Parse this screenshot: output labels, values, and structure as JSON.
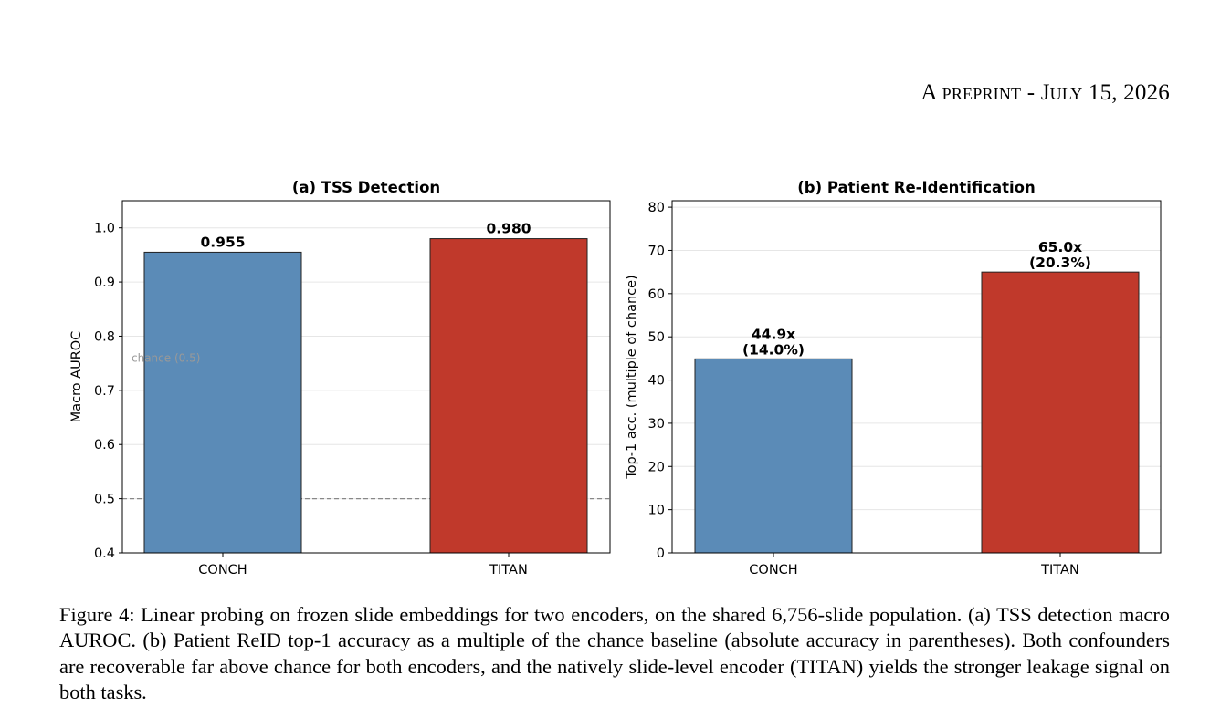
{
  "header": {
    "running_head_a": "A",
    "running_head_preprint": "preprint",
    "running_head_sep": " - ",
    "running_head_j": "J",
    "running_head_uly": "uly",
    "running_head_date": " 15, 2026"
  },
  "colors": {
    "conch": "#5b8bb7",
    "titan": "#c0392b",
    "grid": "#e6e6e6",
    "chance_line": "#888888"
  },
  "chart_data": [
    {
      "type": "bar",
      "title": "(a) TSS Detection",
      "xlabel": "",
      "ylabel": "Macro AUROC",
      "categories": [
        "CONCH",
        "TITAN"
      ],
      "values": [
        0.955,
        0.98
      ],
      "value_labels": [
        "0.955",
        "0.980"
      ],
      "ylim": [
        0.4,
        1.05
      ],
      "yticks": [
        0.4,
        0.5,
        0.6,
        0.7,
        0.8,
        0.9,
        1.0
      ],
      "ytick_labels": [
        "0.4",
        "0.5",
        "0.6",
        "0.7",
        "0.8",
        "0.9",
        "1.0"
      ],
      "grid": true,
      "reference_line": {
        "y": 0.5,
        "style": "dashed",
        "label": "chance (0.5)"
      }
    },
    {
      "type": "bar",
      "title": "(b) Patient Re-Identification",
      "xlabel": "",
      "ylabel": "Top-1 acc. (multiple of chance)",
      "categories": [
        "CONCH",
        "TITAN"
      ],
      "values": [
        44.9,
        65.0
      ],
      "value_labels": [
        [
          "44.9x",
          "(14.0%)"
        ],
        [
          "65.0x",
          "(20.3%)"
        ]
      ],
      "ylim": [
        0,
        81.5
      ],
      "yticks": [
        0,
        10,
        20,
        30,
        40,
        50,
        60,
        70,
        80
      ],
      "ytick_labels": [
        "0",
        "10",
        "20",
        "30",
        "40",
        "50",
        "60",
        "70",
        "80"
      ],
      "grid": true
    }
  ],
  "caption": {
    "prefix": "Figure 4: Linear probing on frozen slide embeddings for two encoders, on the shared ",
    "number": "6,756",
    "suffix": "-slide population. (a) TSS detection macro AUROC. (b) Patient ReID top-1 accuracy as a multiple of the chance baseline (absolute accuracy in parentheses).  Both confounders are recoverable far above chance for both encoders, and the natively slide-level encoder (TITAN) yields the stronger leakage signal on both tasks."
  }
}
